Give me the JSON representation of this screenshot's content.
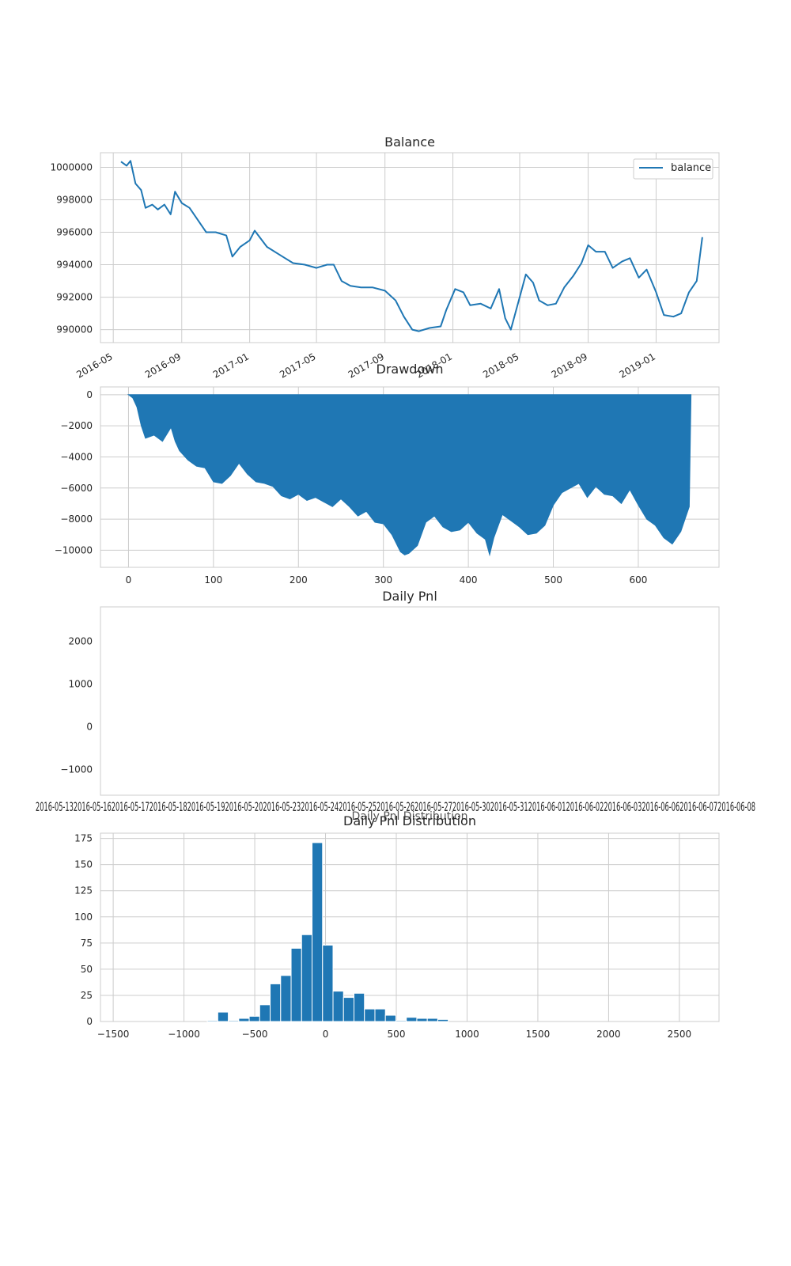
{
  "chart_data": [
    {
      "type": "line",
      "title": "Balance",
      "xlabel": "",
      "ylabel": "",
      "x_ticks": [
        "2016-05",
        "2016-09",
        "2017-01",
        "2017-05",
        "2017-09",
        "2018-01",
        "2018-05",
        "2018-09",
        "2019-01"
      ],
      "y_ticks": [
        "990000",
        "992000",
        "994000",
        "996000",
        "998000",
        "1000000"
      ],
      "ylim": [
        989200,
        1000900
      ],
      "xlim": [
        "2016-04-08",
        "2019-04-24"
      ],
      "grid": true,
      "legend": "top-right",
      "series": [
        {
          "name": "balance",
          "color": "#1f77b4",
          "points": [
            [
              "2016-05-15",
              1000350
            ],
            [
              "2016-05-25",
              1000100
            ],
            [
              "2016-06-01",
              1000400
            ],
            [
              "2016-06-10",
              999000
            ],
            [
              "2016-06-20",
              998600
            ],
            [
              "2016-06-28",
              997500
            ],
            [
              "2016-07-10",
              997700
            ],
            [
              "2016-07-20",
              997400
            ],
            [
              "2016-08-01",
              997700
            ],
            [
              "2016-08-12",
              997100
            ],
            [
              "2016-08-20",
              998500
            ],
            [
              "2016-09-01",
              997800
            ],
            [
              "2016-09-15",
              997500
            ],
            [
              "2016-10-01",
              996700
            ],
            [
              "2016-10-15",
              996000
            ],
            [
              "2016-11-01",
              996000
            ],
            [
              "2016-11-20",
              995800
            ],
            [
              "2016-12-01",
              994500
            ],
            [
              "2016-12-15",
              995100
            ],
            [
              "2017-01-01",
              995500
            ],
            [
              "2017-01-10",
              996100
            ],
            [
              "2017-02-01",
              995100
            ],
            [
              "2017-03-01",
              994500
            ],
            [
              "2017-03-20",
              994100
            ],
            [
              "2017-04-10",
              994000
            ],
            [
              "2017-05-01",
              993800
            ],
            [
              "2017-05-20",
              994000
            ],
            [
              "2017-06-01",
              994000
            ],
            [
              "2017-06-15",
              993000
            ],
            [
              "2017-07-01",
              992700
            ],
            [
              "2017-07-20",
              992600
            ],
            [
              "2017-08-10",
              992600
            ],
            [
              "2017-09-01",
              992400
            ],
            [
              "2017-09-20",
              991800
            ],
            [
              "2017-10-05",
              990800
            ],
            [
              "2017-10-20",
              990000
            ],
            [
              "2017-11-01",
              989900
            ],
            [
              "2017-11-20",
              990100
            ],
            [
              "2017-12-10",
              990200
            ],
            [
              "2017-12-20",
              991200
            ],
            [
              "2018-01-05",
              992500
            ],
            [
              "2018-01-20",
              992300
            ],
            [
              "2018-02-01",
              991500
            ],
            [
              "2018-02-20",
              991600
            ],
            [
              "2018-03-10",
              991300
            ],
            [
              "2018-03-25",
              992500
            ],
            [
              "2018-04-05",
              990700
            ],
            [
              "2018-04-15",
              990000
            ],
            [
              "2018-05-01",
              992000
            ],
            [
              "2018-05-12",
              993400
            ],
            [
              "2018-05-25",
              992900
            ],
            [
              "2018-06-05",
              991800
            ],
            [
              "2018-06-20",
              991500
            ],
            [
              "2018-07-05",
              991600
            ],
            [
              "2018-07-20",
              992600
            ],
            [
              "2018-08-05",
              993300
            ],
            [
              "2018-08-20",
              994100
            ],
            [
              "2018-09-01",
              995200
            ],
            [
              "2018-09-15",
              994800
            ],
            [
              "2018-10-01",
              994800
            ],
            [
              "2018-10-15",
              993800
            ],
            [
              "2018-11-01",
              994200
            ],
            [
              "2018-11-15",
              994400
            ],
            [
              "2018-12-01",
              993200
            ],
            [
              "2018-12-15",
              993700
            ],
            [
              "2019-01-01",
              992300
            ],
            [
              "2019-01-15",
              990900
            ],
            [
              "2019-02-01",
              990800
            ],
            [
              "2019-02-15",
              991000
            ],
            [
              "2019-03-01",
              992300
            ],
            [
              "2019-03-15",
              993000
            ],
            [
              "2019-03-25",
              995700
            ]
          ]
        }
      ]
    },
    {
      "type": "area",
      "title": "Drawdown",
      "xlabel": "",
      "ylabel": "",
      "x_ticks": [
        "0",
        "100",
        "200",
        "300",
        "400",
        "500",
        "600"
      ],
      "y_ticks": [
        "0",
        "−2000",
        "−4000",
        "−6000",
        "−8000",
        "−10000"
      ],
      "xlim": [
        -33,
        695
      ],
      "ylim": [
        -11100,
        500
      ],
      "grid": true,
      "color": "#1f77b4",
      "x": [
        0,
        5,
        10,
        15,
        20,
        30,
        40,
        50,
        55,
        60,
        70,
        80,
        90,
        100,
        110,
        120,
        130,
        140,
        150,
        160,
        170,
        180,
        190,
        200,
        210,
        220,
        230,
        240,
        250,
        260,
        270,
        280,
        290,
        300,
        310,
        320,
        325,
        330,
        340,
        350,
        360,
        370,
        380,
        390,
        400,
        410,
        420,
        425,
        430,
        440,
        450,
        460,
        470,
        480,
        490,
        500,
        510,
        520,
        530,
        540,
        550,
        560,
        570,
        580,
        590,
        600,
        610,
        620,
        630,
        640,
        650,
        660,
        662
      ],
      "values": [
        0,
        -200,
        -800,
        -2000,
        -2800,
        -2600,
        -3000,
        -2100,
        -3000,
        -3600,
        -4200,
        -4600,
        -4700,
        -5600,
        -5700,
        -5200,
        -4400,
        -5100,
        -5600,
        -5700,
        -5900,
        -6500,
        -6700,
        -6400,
        -6800,
        -6600,
        -6900,
        -7200,
        -6700,
        -7200,
        -7800,
        -7500,
        -8200,
        -8300,
        -9000,
        -10100,
        -10300,
        -10200,
        -9700,
        -8200,
        -7800,
        -8500,
        -8800,
        -8700,
        -8200,
        -8900,
        -9300,
        -10300,
        -9200,
        -7700,
        -8100,
        -8500,
        -9000,
        -8900,
        -8400,
        -7100,
        -6300,
        -6000,
        -5700,
        -6600,
        -5900,
        -6400,
        -6500,
        -7000,
        -6100,
        -7100,
        -8000,
        -8400,
        -9200,
        -9600,
        -8800,
        -7200,
        0
      ]
    },
    {
      "type": "bar",
      "title": "Daily Pnl",
      "xlabel": "",
      "ylabel": "",
      "y_ticks": [
        "2000",
        "1000",
        "0",
        "−1000"
      ],
      "ylim": [
        -1600,
        2800
      ],
      "x_tick_text": "2016-05-132016-05-162016-05-172016-05-182016-05-192016-05-202016-05-232016-05-242016-05-252016-05-262016-05-272016-05-302016-05-312016-06-012016-06-022016-06-032016-06-062016-06-072016-06-08",
      "values": []
    },
    {
      "type": "bar",
      "title": "Daily Pnl Distribution",
      "overlay_title": "Daily Pnl Distribution",
      "xlabel": "",
      "ylabel": "",
      "x_ticks": [
        "−1500",
        "−1000",
        "−500",
        "0",
        "500",
        "1000",
        "1500",
        "2000",
        "2500"
      ],
      "y_ticks": [
        "0",
        "25",
        "50",
        "75",
        "100",
        "125",
        "150",
        "175"
      ],
      "xlim": [
        -1590,
        2780
      ],
      "ylim": [
        0,
        180
      ],
      "grid": true,
      "color": "#1f77b4",
      "bin_width": 74,
      "bins_start": [
        -835,
        -761,
        -687,
        -613,
        -539,
        -465,
        -391,
        -317,
        -243,
        -169,
        -95,
        -21,
        53,
        127,
        201,
        275,
        349,
        423,
        497,
        571,
        645,
        719,
        793,
        867,
        941
      ],
      "values": [
        1,
        9,
        1,
        3,
        5,
        16,
        36,
        44,
        70,
        83,
        171,
        73,
        29,
        23,
        27,
        12,
        12,
        6,
        1,
        4,
        3,
        3,
        2,
        0,
        0
      ]
    }
  ]
}
